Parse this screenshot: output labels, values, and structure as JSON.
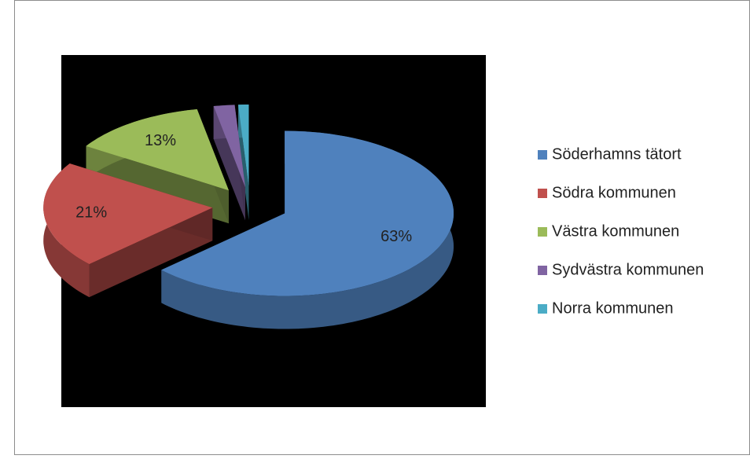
{
  "chart_data": {
    "type": "pie",
    "categories": [
      "Söderhamns tätort",
      "Södra kommunen",
      "Västra kommunen",
      "Sydvästra kommunen",
      "Norra kommunen"
    ],
    "values": [
      63,
      21,
      13,
      2,
      1
    ],
    "value_labels": [
      "63%",
      "21%",
      "13%",
      null,
      null
    ],
    "colors": [
      "#4f81bd",
      "#c0504d",
      "#9bbb59",
      "#8064a2",
      "#4bacc6"
    ],
    "legend": "right"
  }
}
